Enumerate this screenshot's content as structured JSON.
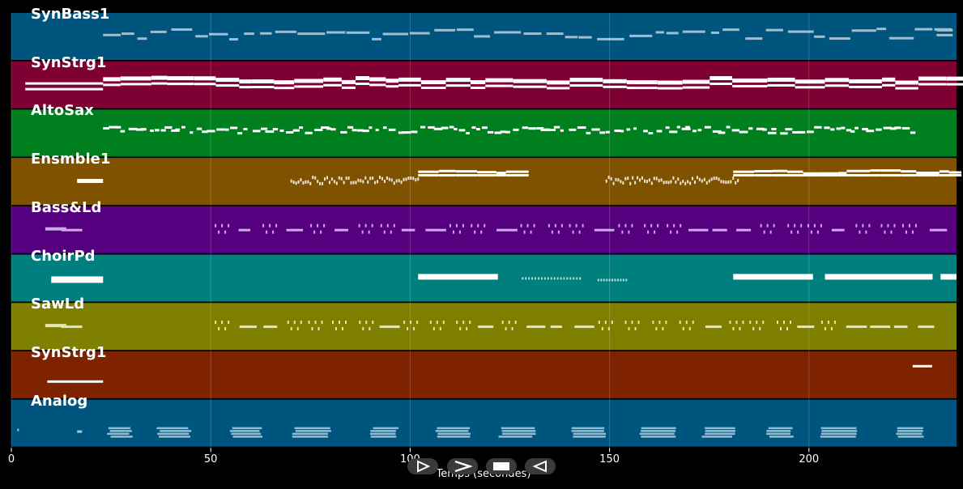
{
  "timeline": {
    "x_label": "Temps (secondes)",
    "x_range": [
      0,
      237
    ],
    "ticks": [
      {
        "value": 0,
        "label": "0"
      },
      {
        "value": 50,
        "label": "50"
      },
      {
        "value": 100,
        "label": "100"
      },
      {
        "value": 150,
        "label": "150"
      },
      {
        "value": 200,
        "label": "200"
      }
    ]
  },
  "tracks": [
    {
      "name": "SynBass1",
      "color": "#00557f",
      "note_color": "#9fbfd0",
      "style": "bass"
    },
    {
      "name": "SynStrg1",
      "color": "#7f0033",
      "note_color": "#ffffff",
      "style": "chords"
    },
    {
      "name": "AltoSax",
      "color": "#007f1f",
      "note_color": "#ffffff",
      "style": "melody"
    },
    {
      "name": "Ensmble1",
      "color": "#7f5200",
      "note_color": "#ffffff",
      "style": "ensemble"
    },
    {
      "name": "Bass&Ld",
      "color": "#54007f",
      "note_color": "#c9a9e6",
      "style": "arp"
    },
    {
      "name": "ChoirPd",
      "color": "#007f7f",
      "note_color": "#ffffff",
      "style": "choir"
    },
    {
      "name": "SawLd",
      "color": "#7f7f00",
      "note_color": "#e6e6b0",
      "style": "arp"
    },
    {
      "name": "SynStrg1",
      "color": "#7f2200",
      "note_color": "#ffffff",
      "style": "sparse"
    },
    {
      "name": "Analog",
      "color": "#00557f",
      "note_color": "#9fc9dc",
      "style": "blocks"
    }
  ],
  "controls": [
    {
      "name": "play-button",
      "icon": "play-outline-icon"
    },
    {
      "name": "fast-forward-button",
      "icon": "chevron-right-icon"
    },
    {
      "name": "stop-button",
      "icon": "stop-icon"
    },
    {
      "name": "rewind-button",
      "icon": "rewind-icon"
    }
  ]
}
